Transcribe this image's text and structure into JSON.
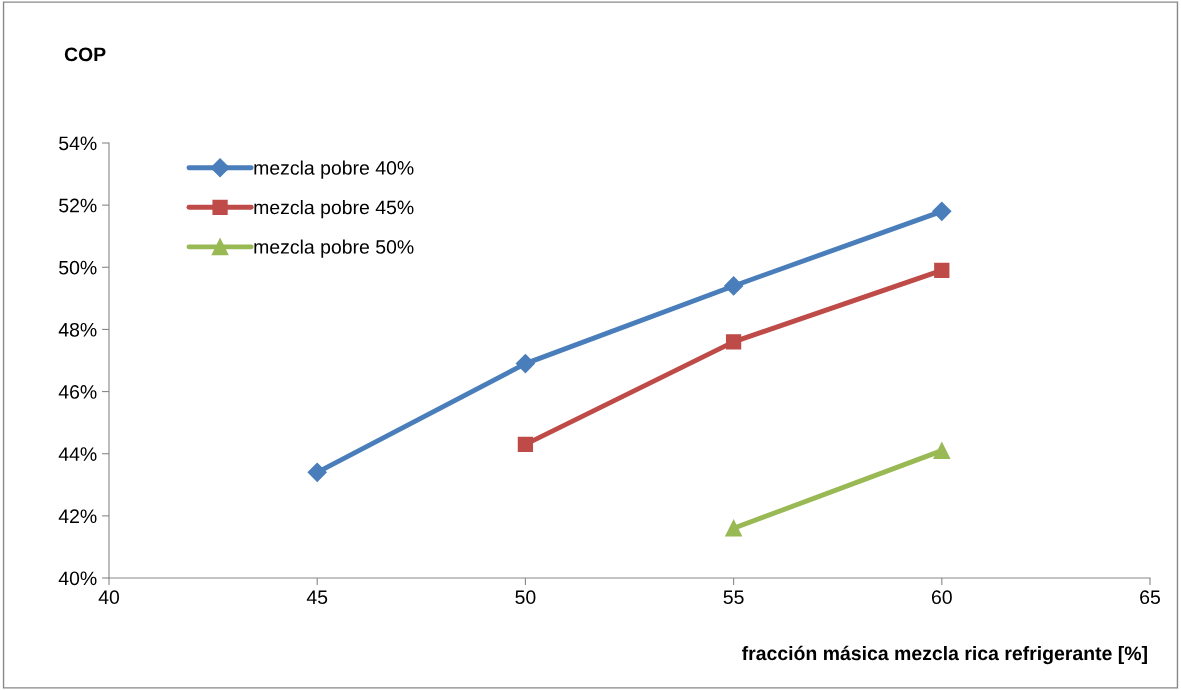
{
  "chart_data": {
    "type": "line",
    "ylabel": "COP",
    "xlabel": "fracción másica mezcla rica refrigerante [%]",
    "xlim": [
      40,
      65
    ],
    "xticks": [
      40,
      45,
      50,
      55,
      60,
      65
    ],
    "ylim": [
      40,
      54
    ],
    "yticks": [
      {
        "value": 40,
        "label": "40%"
      },
      {
        "value": 42,
        "label": "42%"
      },
      {
        "value": 44,
        "label": "44%"
      },
      {
        "value": 46,
        "label": "46%"
      },
      {
        "value": 48,
        "label": "48%"
      },
      {
        "value": 50,
        "label": "50%"
      },
      {
        "value": 52,
        "label": "52%"
      },
      {
        "value": 54,
        "label": "54%"
      }
    ],
    "grid": false,
    "legend": "top left",
    "series": [
      {
        "name": "mezcla pobre 40%",
        "color": "#4a7ebb",
        "marker": "diamond",
        "x": [
          45,
          50,
          55,
          60
        ],
        "values": [
          43.4,
          46.9,
          49.4,
          51.8
        ]
      },
      {
        "name": "mezcla pobre 45%",
        "color": "#be4b48",
        "marker": "square",
        "x": [
          50,
          55,
          60
        ],
        "values": [
          44.3,
          47.6,
          49.9
        ]
      },
      {
        "name": "mezcla pobre 50%",
        "color": "#98b954",
        "marker": "triangle",
        "x": [
          55,
          60
        ],
        "values": [
          41.6,
          44.1
        ]
      }
    ]
  }
}
